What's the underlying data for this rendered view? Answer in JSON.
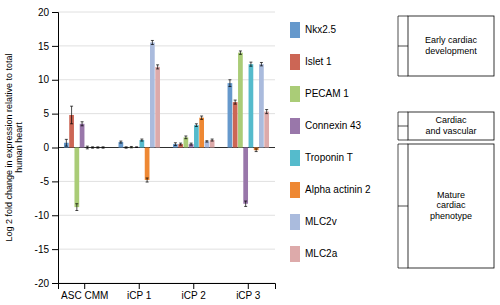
{
  "chart_data": {
    "type": "bar",
    "categories": [
      "ASC CMM",
      "iCP 1",
      "iCP 2",
      "iCP 3"
    ],
    "series": [
      {
        "name": "Nkx2.5",
        "color": "#6699CC",
        "values": [
          0.7,
          0.8,
          0.5,
          9.5
        ],
        "errors": [
          0.5,
          0.15,
          0.2,
          0.5
        ]
      },
      {
        "name": "Islet 1",
        "color": "#CC6655",
        "values": [
          4.8,
          0.0,
          0.5,
          6.7
        ],
        "errors": [
          1.3,
          0.1,
          0.15,
          0.3
        ]
      },
      {
        "name": "PECAM 1",
        "color": "#AACC77",
        "values": [
          -8.8,
          0.05,
          1.5,
          14.0
        ],
        "errors": [
          0.5,
          0.1,
          0.2,
          0.25
        ]
      },
      {
        "name": "Connexin 43",
        "color": "#9977AA",
        "values": [
          3.5,
          0.05,
          0.5,
          -8.3
        ],
        "errors": [
          0.3,
          0.05,
          0.15,
          0.4
        ]
      },
      {
        "name": "Troponin T",
        "color": "#55BBCC",
        "values": [
          0.0,
          1.1,
          3.3,
          12.3
        ],
        "errors": [
          0.2,
          0.15,
          0.2,
          0.3
        ]
      },
      {
        "name": "Alpha actinin 2",
        "color": "#EE8833",
        "values": [
          0.0,
          -4.8,
          4.4,
          -0.4
        ],
        "errors": [
          0.1,
          0.3,
          0.25,
          0.2
        ]
      },
      {
        "name": "MLC2v",
        "color": "#AABBDD",
        "values": [
          0.0,
          15.5,
          0.9,
          12.3
        ],
        "errors": [
          0.1,
          0.3,
          0.1,
          0.25
        ]
      },
      {
        "name": "MLC2a",
        "color": "#DDAAAA",
        "values": [
          0.0,
          11.9,
          1.1,
          5.3
        ],
        "errors": [
          0.1,
          0.3,
          0.15,
          0.3
        ]
      }
    ],
    "ylabel": "Log 2 fold change in expression relative to total\nhuman heart",
    "ylim": [
      -20,
      20
    ],
    "yticks": [
      -20,
      -15,
      -10,
      -5,
      0,
      5,
      10,
      15,
      20
    ],
    "grid": true,
    "legend": "right",
    "annotations": [
      {
        "text": "Early cardiac\ndevelopment",
        "series": [
          "Nkx2.5",
          "Islet 1"
        ]
      },
      {
        "text": "Cardiac\nand vascular",
        "series": [
          "Connexin 43"
        ]
      },
      {
        "text": "Mature\ncardiac\nphenotype",
        "series": [
          "Troponin T",
          "Alpha actinin 2",
          "MLC2v",
          "MLC2a"
        ]
      }
    ]
  }
}
